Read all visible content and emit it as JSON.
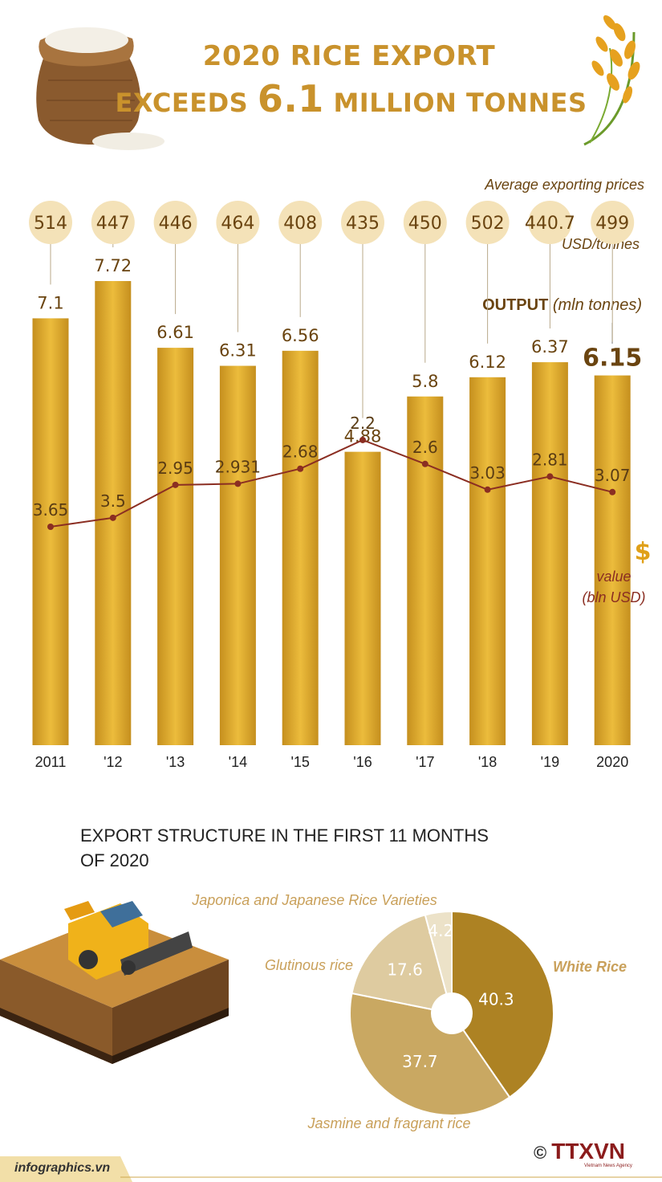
{
  "header": {
    "line1": "2020 RICE EXPORT",
    "line2_prefix": "EXCEEDS",
    "line2_number": "6.1",
    "line2_suffix": "MILLION TONNES"
  },
  "chart_data": [
    {
      "type": "bar",
      "title": "OUTPUT (mln tonnes)",
      "categories": [
        "2011",
        "'12",
        "'13",
        "'14",
        "'15",
        "'16",
        "'17",
        "'18",
        "'19",
        "2020"
      ],
      "series": [
        {
          "name": "OUTPUT (mln tonnes)",
          "values": [
            7.1,
            7.72,
            6.61,
            6.31,
            6.56,
            4.88,
            5.8,
            6.12,
            6.37,
            6.15
          ]
        },
        {
          "name": "value (bln USD)",
          "type": "line",
          "values": [
            3.65,
            3.5,
            2.95,
            2.931,
            2.68,
            2.2,
            2.6,
            3.03,
            2.81,
            3.07
          ]
        },
        {
          "name": "Average exporting prices (USD/tonnes)",
          "type": "label",
          "values": [
            514,
            447,
            446,
            464,
            408,
            435,
            450,
            502,
            440.7,
            499
          ]
        }
      ],
      "output_labels": [
        "7.1",
        "7.72",
        "6.61",
        "6.31",
        "6.56",
        "4.88",
        "5.8",
        "6.12",
        "6.37",
        "6.15"
      ],
      "value_labels": [
        "3.65",
        "3.5",
        "2.95",
        "2.931",
        "2.68",
        "2.2",
        "2.6",
        "3.03",
        "2.81",
        "3.07"
      ],
      "price_labels": [
        "514",
        "447",
        "446",
        "464",
        "408",
        "435",
        "450",
        "502",
        "440.7",
        "499"
      ],
      "prices_title": "Average exporting prices",
      "prices_unit": "USD/tonnes",
      "output_title": "OUTPUT",
      "output_unit": "(mln tonnes)",
      "value_title": "value",
      "value_unit": "(bln USD)",
      "ylim": [
        0,
        7.72
      ]
    },
    {
      "type": "pie",
      "title": "EXPORT STRUCTURE IN THE FIRST 11 MONTHS OF 2020",
      "categories": [
        "White Rice",
        "Jasmine and  fragrant rice",
        "Glutinous rice",
        "Japonica and Japanese Rice Varieties"
      ],
      "values": [
        40.3,
        37.7,
        17.6,
        4.2
      ],
      "value_labels": [
        "40.3",
        "37.7",
        "17.6",
        "4.2"
      ],
      "colors": [
        "#ad8223",
        "#c9a862",
        "#decba0",
        "#ece2c8"
      ]
    }
  ],
  "section_title": "EXPORT STRUCTURE IN THE FIRST 11 MONTHS OF 2020",
  "footer": {
    "site": "infographics.vn",
    "logo": "TTXVN",
    "copyright": "©",
    "logo_sub": "Vietnam News Agency"
  },
  "colors": {
    "gold": "#c9922c",
    "bar": "#d9a62a",
    "line": "#8b2e22",
    "bubble": "#f4e2b8",
    "text_dark": "#6a4410"
  }
}
